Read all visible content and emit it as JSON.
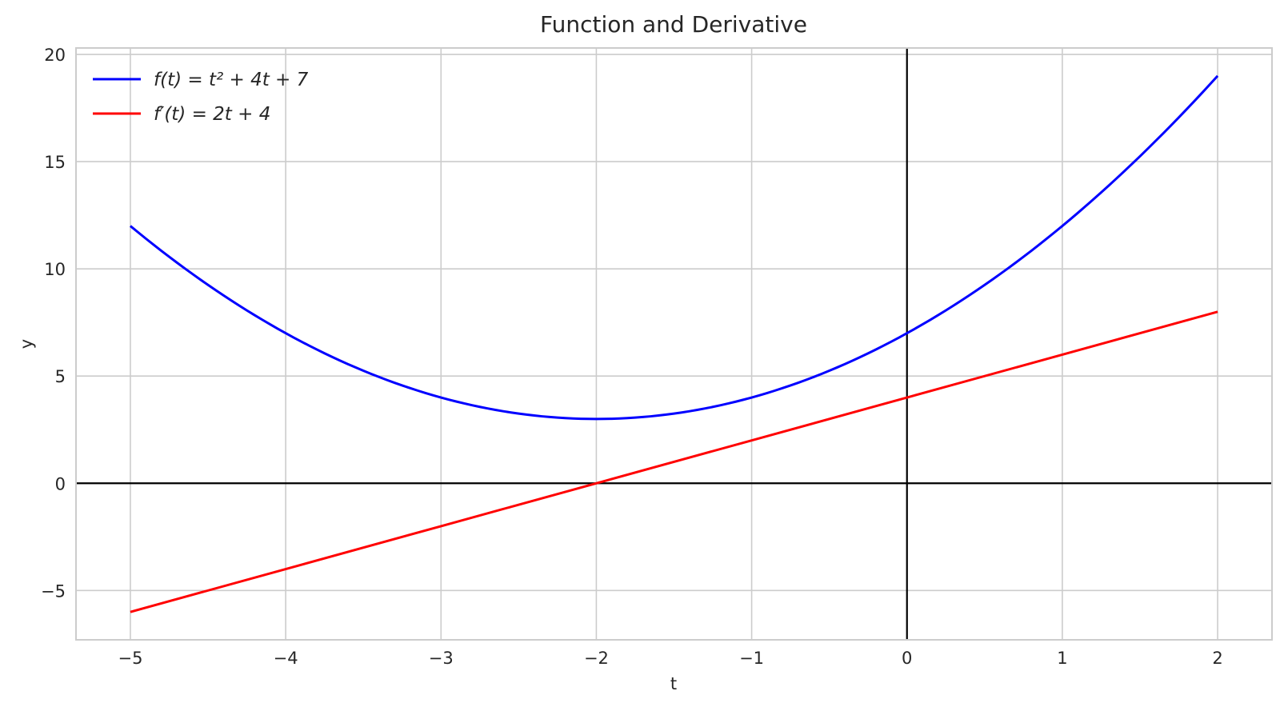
{
  "chart_data": {
    "type": "line",
    "title": "Function and Derivative",
    "xlabel": "t",
    "ylabel": "y",
    "xlim": [
      -5.35,
      2.35
    ],
    "ylim": [
      -7.3,
      20.3
    ],
    "xticks": [
      -5,
      -4,
      -3,
      -2,
      -1,
      0,
      1,
      2
    ],
    "yticks": [
      -5,
      0,
      5,
      10,
      15,
      20
    ],
    "xtick_labels": [
      "−5",
      "−4",
      "−3",
      "−2",
      "−1",
      "0",
      "1",
      "2"
    ],
    "ytick_labels": [
      "−5",
      "0",
      "5",
      "10",
      "15",
      "20"
    ],
    "grid": true,
    "legend_position": "top-left",
    "reference_lines": {
      "horizontal_y": 0,
      "vertical_x": 0,
      "color": "#000000"
    },
    "x_start": -5,
    "x_end": 2,
    "series": [
      {
        "name": "f(t) = t² + 4t + 7",
        "color": "#0000ff",
        "x": [
          -5,
          -4.5,
          -4,
          -3.5,
          -3,
          -2.5,
          -2,
          -1.5,
          -1,
          -0.5,
          0,
          0.5,
          1,
          1.5,
          2
        ],
        "y": [
          12,
          9.25,
          7,
          5.25,
          4,
          3.25,
          3,
          3.25,
          4,
          5.25,
          7,
          9.25,
          12,
          15.25,
          19
        ]
      },
      {
        "name": "f′(t) = 2t + 4",
        "color": "#ff0000",
        "x": [
          -5,
          -4,
          -3,
          -2,
          -1,
          0,
          1,
          2
        ],
        "y": [
          -6,
          -4,
          -2,
          0,
          2,
          4,
          6,
          8
        ]
      }
    ]
  }
}
